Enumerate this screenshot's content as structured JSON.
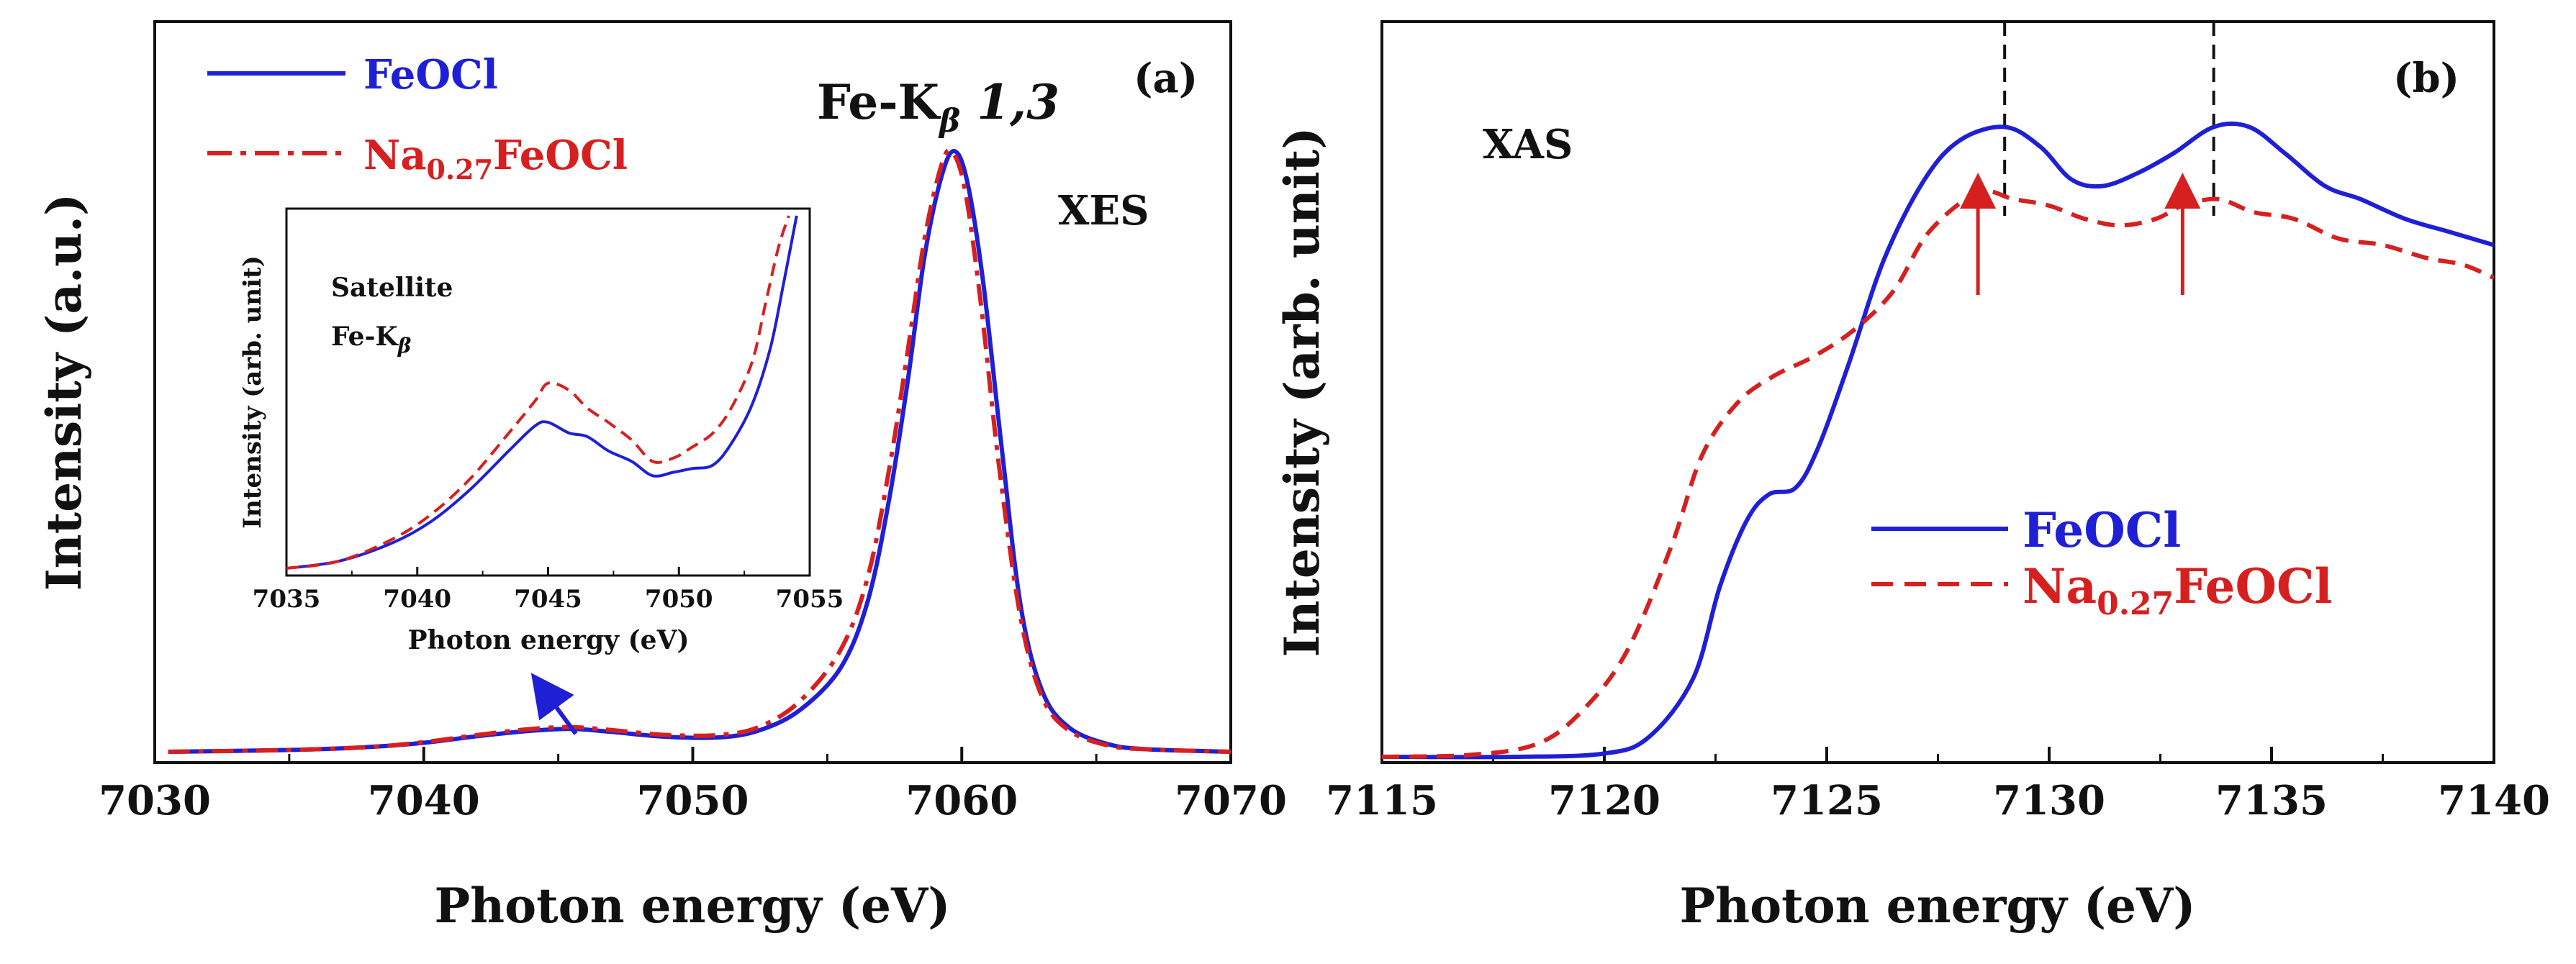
{
  "chart_data": [
    {
      "panel_label": "(a)",
      "type": "line",
      "xlabel": "Photon energy (eV)",
      "ylabel": "Intensity (a.u.)",
      "xlim": [
        7030,
        7070
      ],
      "ylim": [
        0,
        1
      ],
      "xticks": [
        "7030",
        "7040",
        "7050",
        "7060",
        "7070"
      ],
      "annotations": {
        "peak_label": "Fe-K",
        "peak_subscript": "β",
        "peak_suffix": " 1,3",
        "technique": "XES"
      },
      "legend": {
        "placement": "top-left",
        "entries": [
          {
            "base": "FeOCl",
            "sub": "",
            "rest": "",
            "color": "#1f1fd6",
            "style": "solid"
          },
          {
            "base": "Na",
            "sub": "0.27",
            "rest": "FeOCl",
            "color": "#d62020",
            "style": "dash-dot"
          }
        ]
      },
      "series": [
        {
          "name": "FeOCl",
          "color": "#1f1fd6",
          "x": [
            7030.5,
            7035,
            7038,
            7040,
            7042,
            7044,
            7045.5,
            7047,
            7049,
            7051,
            7052.5,
            7054,
            7055.5,
            7056.5,
            7057.3,
            7058.0,
            7058.6,
            7059.2,
            7059.7,
            7060.2,
            7060.8,
            7061.5,
            7062.2,
            7063,
            7064,
            7065.5,
            7067,
            7070
          ],
          "y": [
            0.0,
            0.003,
            0.008,
            0.015,
            0.026,
            0.035,
            0.038,
            0.033,
            0.025,
            0.024,
            0.036,
            0.07,
            0.14,
            0.25,
            0.42,
            0.62,
            0.82,
            0.95,
            1.0,
            0.95,
            0.78,
            0.5,
            0.24,
            0.1,
            0.04,
            0.012,
            0.004,
            0.0
          ]
        },
        {
          "name": "Na0.27FeOCl",
          "color": "#d62020",
          "x": [
            7030.5,
            7035,
            7038,
            7040,
            7042,
            7044,
            7045.5,
            7047,
            7049,
            7051,
            7052.5,
            7054,
            7055.5,
            7056.5,
            7057.3,
            7058.0,
            7058.6,
            7059.2,
            7059.6,
            7060.1,
            7060.7,
            7061.4,
            7062.2,
            7063,
            7064,
            7065.5,
            7067,
            7070
          ],
          "y": [
            0.0,
            0.003,
            0.008,
            0.016,
            0.028,
            0.038,
            0.041,
            0.036,
            0.028,
            0.028,
            0.042,
            0.085,
            0.17,
            0.29,
            0.47,
            0.67,
            0.85,
            0.97,
            1.0,
            0.94,
            0.75,
            0.47,
            0.22,
            0.09,
            0.035,
            0.01,
            0.004,
            0.0
          ]
        }
      ]
    },
    {
      "panel_label": "inset",
      "type": "line",
      "xlabel": "Photon energy (eV)",
      "ylabel": "Intensity (arb. unit)",
      "xlim": [
        7035,
        7055
      ],
      "ylim": [
        0,
        1
      ],
      "xticks": [
        "7035",
        "7040",
        "7045",
        "7050",
        "7055"
      ],
      "annotations": {
        "line1": "Satellite",
        "line2": "Fe-K",
        "line2_subscript": "β"
      },
      "series": [
        {
          "name": "FeOCl",
          "color": "#1f1fd6",
          "x": [
            7035,
            7037,
            7039,
            7040.5,
            7042,
            7043.5,
            7044.5,
            7045,
            7045.8,
            7046.5,
            7047.3,
            7048.2,
            7049,
            7049.8,
            7050.5,
            7051.3,
            7052,
            7052.8,
            7053.5,
            7054,
            7054.5
          ],
          "y": [
            0.0,
            0.02,
            0.07,
            0.13,
            0.22,
            0.33,
            0.4,
            0.41,
            0.38,
            0.37,
            0.33,
            0.3,
            0.26,
            0.27,
            0.28,
            0.29,
            0.35,
            0.46,
            0.62,
            0.8,
            0.99
          ]
        },
        {
          "name": "Na0.27FeOCl",
          "color": "#d62020",
          "x": [
            7035,
            7037,
            7039,
            7040.5,
            7042,
            7043.5,
            7044.5,
            7045,
            7045.8,
            7046.5,
            7047.3,
            7048.2,
            7049,
            7049.8,
            7050.5,
            7051.3,
            7052,
            7052.8,
            7053.3,
            7053.8,
            7054.2
          ],
          "y": [
            0.0,
            0.02,
            0.08,
            0.15,
            0.25,
            0.38,
            0.47,
            0.52,
            0.5,
            0.45,
            0.41,
            0.36,
            0.3,
            0.31,
            0.34,
            0.38,
            0.45,
            0.58,
            0.74,
            0.9,
            0.99
          ]
        }
      ]
    },
    {
      "panel_label": "(b)",
      "type": "line",
      "xlabel": "Photon energy (eV)",
      "ylabel": "Intensity (arb. unit)",
      "xlim": [
        7115,
        7140
      ],
      "ylim": [
        0,
        1
      ],
      "xticks": [
        "7115",
        "7120",
        "7125",
        "7130",
        "7135",
        "7140"
      ],
      "annotations": {
        "technique": "XAS",
        "dashed_markers_x": [
          7129.0,
          7133.7
        ],
        "arrows_x": [
          7128.4,
          7133.0
        ]
      },
      "legend": {
        "placement": "center-right",
        "entries": [
          {
            "base": "FeOCl",
            "sub": "",
            "rest": "",
            "color": "#1f1fd6",
            "style": "solid"
          },
          {
            "base": "Na",
            "sub": "0.27",
            "rest": "FeOCl",
            "color": "#d62020",
            "style": "dashed"
          }
        ]
      },
      "series": [
        {
          "name": "FeOCl",
          "color": "#1f1fd6",
          "x": [
            7115,
            7118,
            7120,
            7121,
            7122,
            7122.6,
            7123.2,
            7123.7,
            7124.3,
            7124.8,
            7125.5,
            7126.3,
            7127.2,
            7128,
            7129,
            7129.8,
            7130.5,
            7131.2,
            7132,
            7132.8,
            7133.7,
            7134.5,
            7135.3,
            7136.2,
            7137,
            7138,
            7139,
            7140
          ],
          "y": [
            0.0,
            0.0,
            0.005,
            0.03,
            0.12,
            0.26,
            0.36,
            0.4,
            0.41,
            0.47,
            0.6,
            0.76,
            0.88,
            0.94,
            0.96,
            0.93,
            0.88,
            0.87,
            0.89,
            0.92,
            0.96,
            0.96,
            0.92,
            0.87,
            0.85,
            0.82,
            0.8,
            0.78
          ]
        },
        {
          "name": "Na0.27FeOCl",
          "color": "#d62020",
          "x": [
            7115,
            7117,
            7118.5,
            7119.5,
            7120.5,
            7121.5,
            7122.2,
            7123,
            7123.8,
            7124.7,
            7125.6,
            7126.5,
            7127.3,
            7128.4,
            7129.2,
            7130,
            7130.8,
            7131.6,
            7132.4,
            7133,
            7133.8,
            7134.6,
            7135.5,
            7136.5,
            7137.5,
            7138.5,
            7139.3,
            7140
          ],
          "y": [
            0.0,
            0.003,
            0.02,
            0.07,
            0.16,
            0.32,
            0.46,
            0.54,
            0.58,
            0.61,
            0.65,
            0.71,
            0.8,
            0.86,
            0.85,
            0.84,
            0.82,
            0.81,
            0.82,
            0.84,
            0.85,
            0.83,
            0.82,
            0.79,
            0.78,
            0.76,
            0.75,
            0.73
          ]
        }
      ]
    }
  ]
}
